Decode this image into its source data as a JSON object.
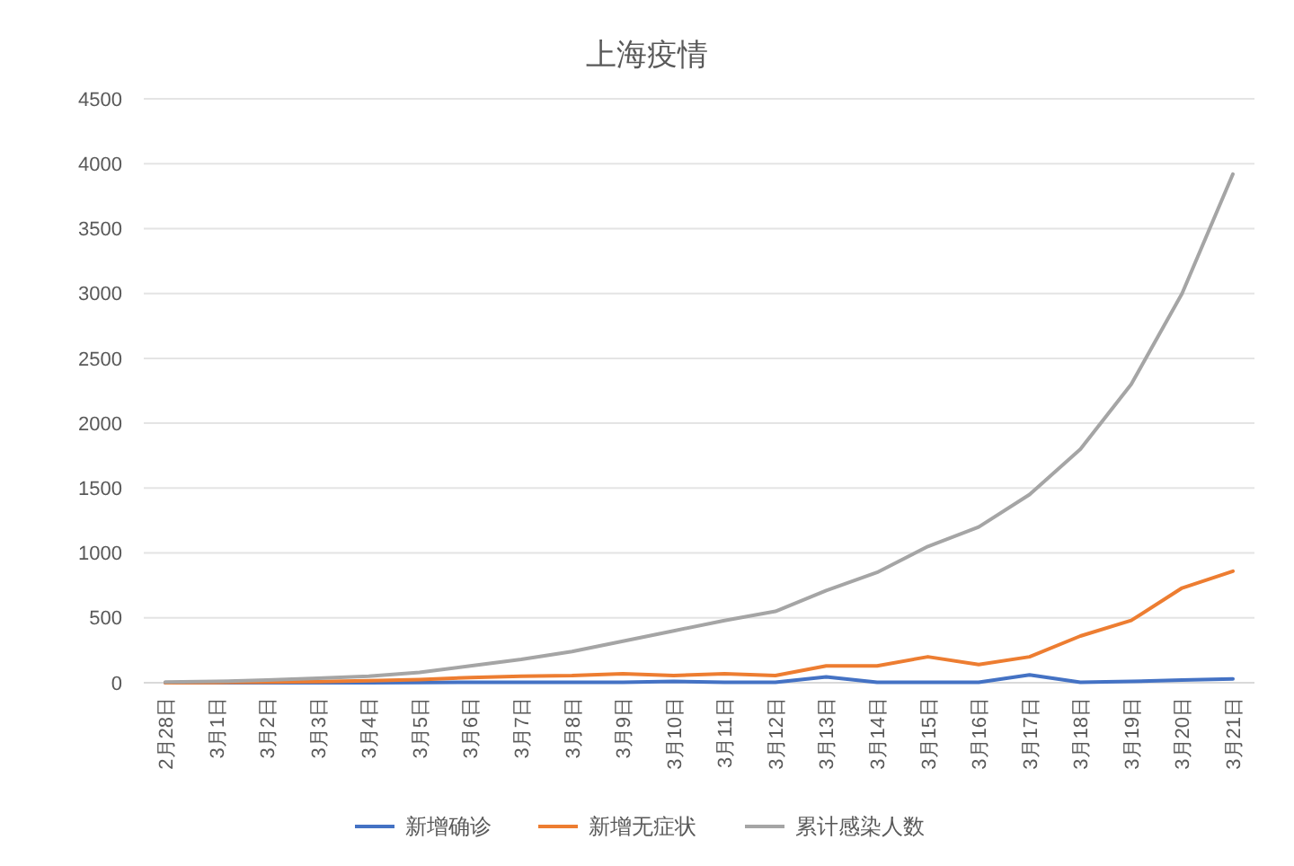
{
  "chart_data": {
    "type": "line",
    "title": "上海疫情",
    "categories": [
      "2月28日",
      "3月1日",
      "3月2日",
      "3月3日",
      "3月4日",
      "3月5日",
      "3月6日",
      "3月7日",
      "3月8日",
      "3月9日",
      "3月10日",
      "3月11日",
      "3月12日",
      "3月13日",
      "3月14日",
      "3月15日",
      "3月16日",
      "3月17日",
      "3月18日",
      "3月19日",
      "3月20日",
      "3月21日"
    ],
    "series": [
      {
        "name": "新增确诊",
        "color": "#4472c4",
        "values": [
          0,
          0,
          0,
          0,
          0,
          2,
          3,
          3,
          3,
          3,
          10,
          3,
          3,
          45,
          3,
          3,
          3,
          60,
          3,
          10,
          20,
          30
        ]
      },
      {
        "name": "新增无症状",
        "color": "#ed7d31",
        "values": [
          0,
          2,
          5,
          8,
          15,
          25,
          40,
          50,
          55,
          70,
          55,
          70,
          55,
          130,
          130,
          200,
          140,
          200,
          360,
          480,
          730,
          860
        ]
      },
      {
        "name": "累计感染人数",
        "color": "#a5a5a5",
        "values": [
          5,
          10,
          20,
          35,
          50,
          80,
          130,
          180,
          240,
          320,
          400,
          480,
          550,
          710,
          850,
          1050,
          1200,
          1450,
          1800,
          2300,
          3000,
          3920
        ]
      }
    ],
    "ylim": [
      0,
      4500
    ],
    "yticks": [
      0,
      500,
      1000,
      1500,
      2000,
      2500,
      3000,
      3500,
      4000,
      4500
    ],
    "grid": "y",
    "legend": "bottom",
    "marker": "none",
    "line_style": "solid"
  }
}
